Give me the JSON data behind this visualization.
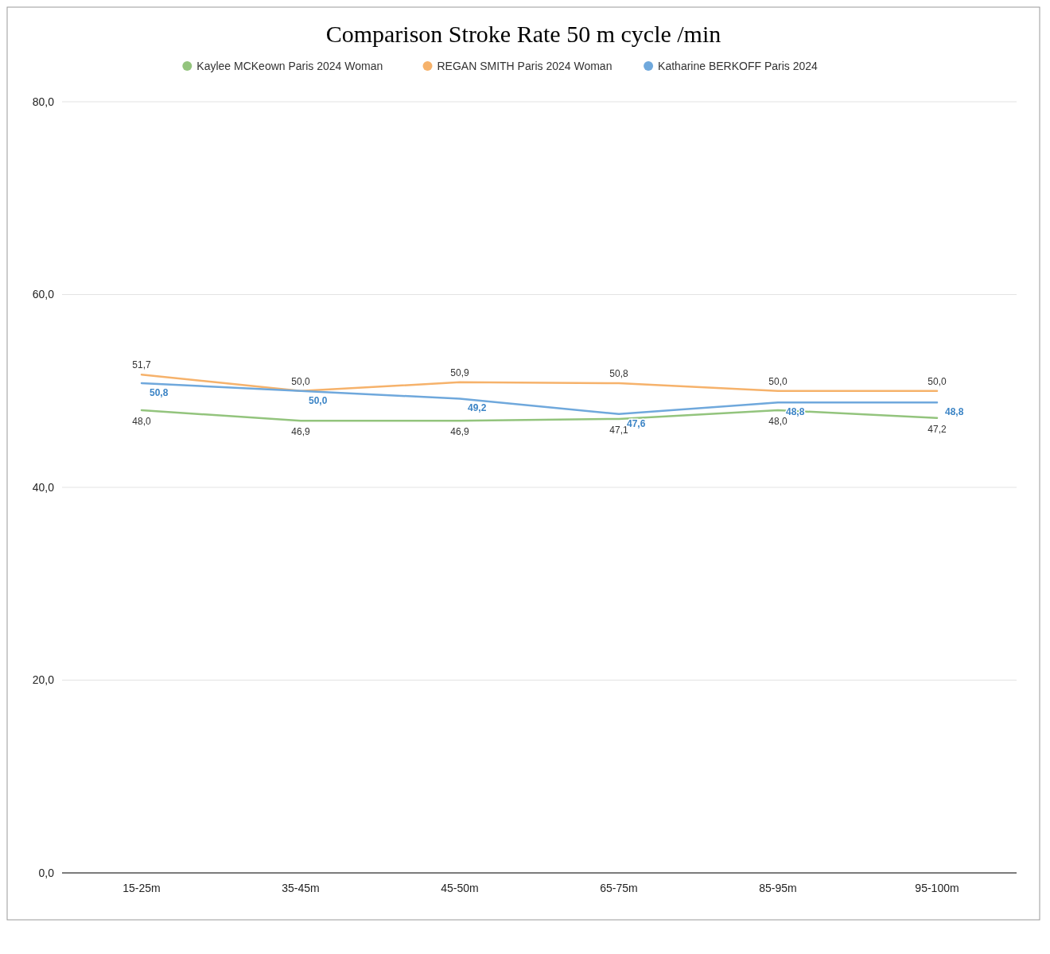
{
  "chart_data": {
    "type": "line",
    "title": "Comparison Stroke Rate 50 m cycle /min",
    "categories": [
      "15-25m",
      "35-45m",
      "45-50m",
      "65-75m",
      "85-95m",
      "95-100m"
    ],
    "series": [
      {
        "name": "Kaylee MCKeown Paris 2024 Woman",
        "color": "#93c47d",
        "values": [
          48.0,
          46.9,
          46.9,
          47.1,
          48.0,
          47.2
        ],
        "value_labels": [
          "48,0",
          "46,9",
          "46,9",
          "47,1",
          "48,0",
          "47,2"
        ]
      },
      {
        "name": "REGAN SMITH Paris 2024 Woman",
        "color": "#f6b26b",
        "values": [
          51.7,
          50.0,
          50.9,
          50.8,
          50.0,
          50.0
        ],
        "value_labels": [
          "51,7",
          "50,0",
          "50,9",
          "50,8",
          "50,0",
          "50,0"
        ]
      },
      {
        "name": "Katharine BERKOFF Paris 2024",
        "color": "#6fa8dc",
        "values": [
          50.8,
          50.0,
          49.2,
          47.6,
          48.8,
          48.8
        ],
        "value_labels": [
          "50,8",
          "50,0",
          "49,2",
          "47,6",
          "48,8",
          "48,8"
        ]
      }
    ],
    "ylim": [
      0,
      80
    ],
    "yticks": [
      {
        "value": 0,
        "label": "0,0"
      },
      {
        "value": 20,
        "label": "20,0"
      },
      {
        "value": 40,
        "label": "40,0"
      },
      {
        "value": 60,
        "label": "60,0"
      },
      {
        "value": 80,
        "label": "80,0"
      }
    ],
    "grid": "y",
    "legend": "top",
    "marker": "none",
    "line_style": "solid"
  }
}
